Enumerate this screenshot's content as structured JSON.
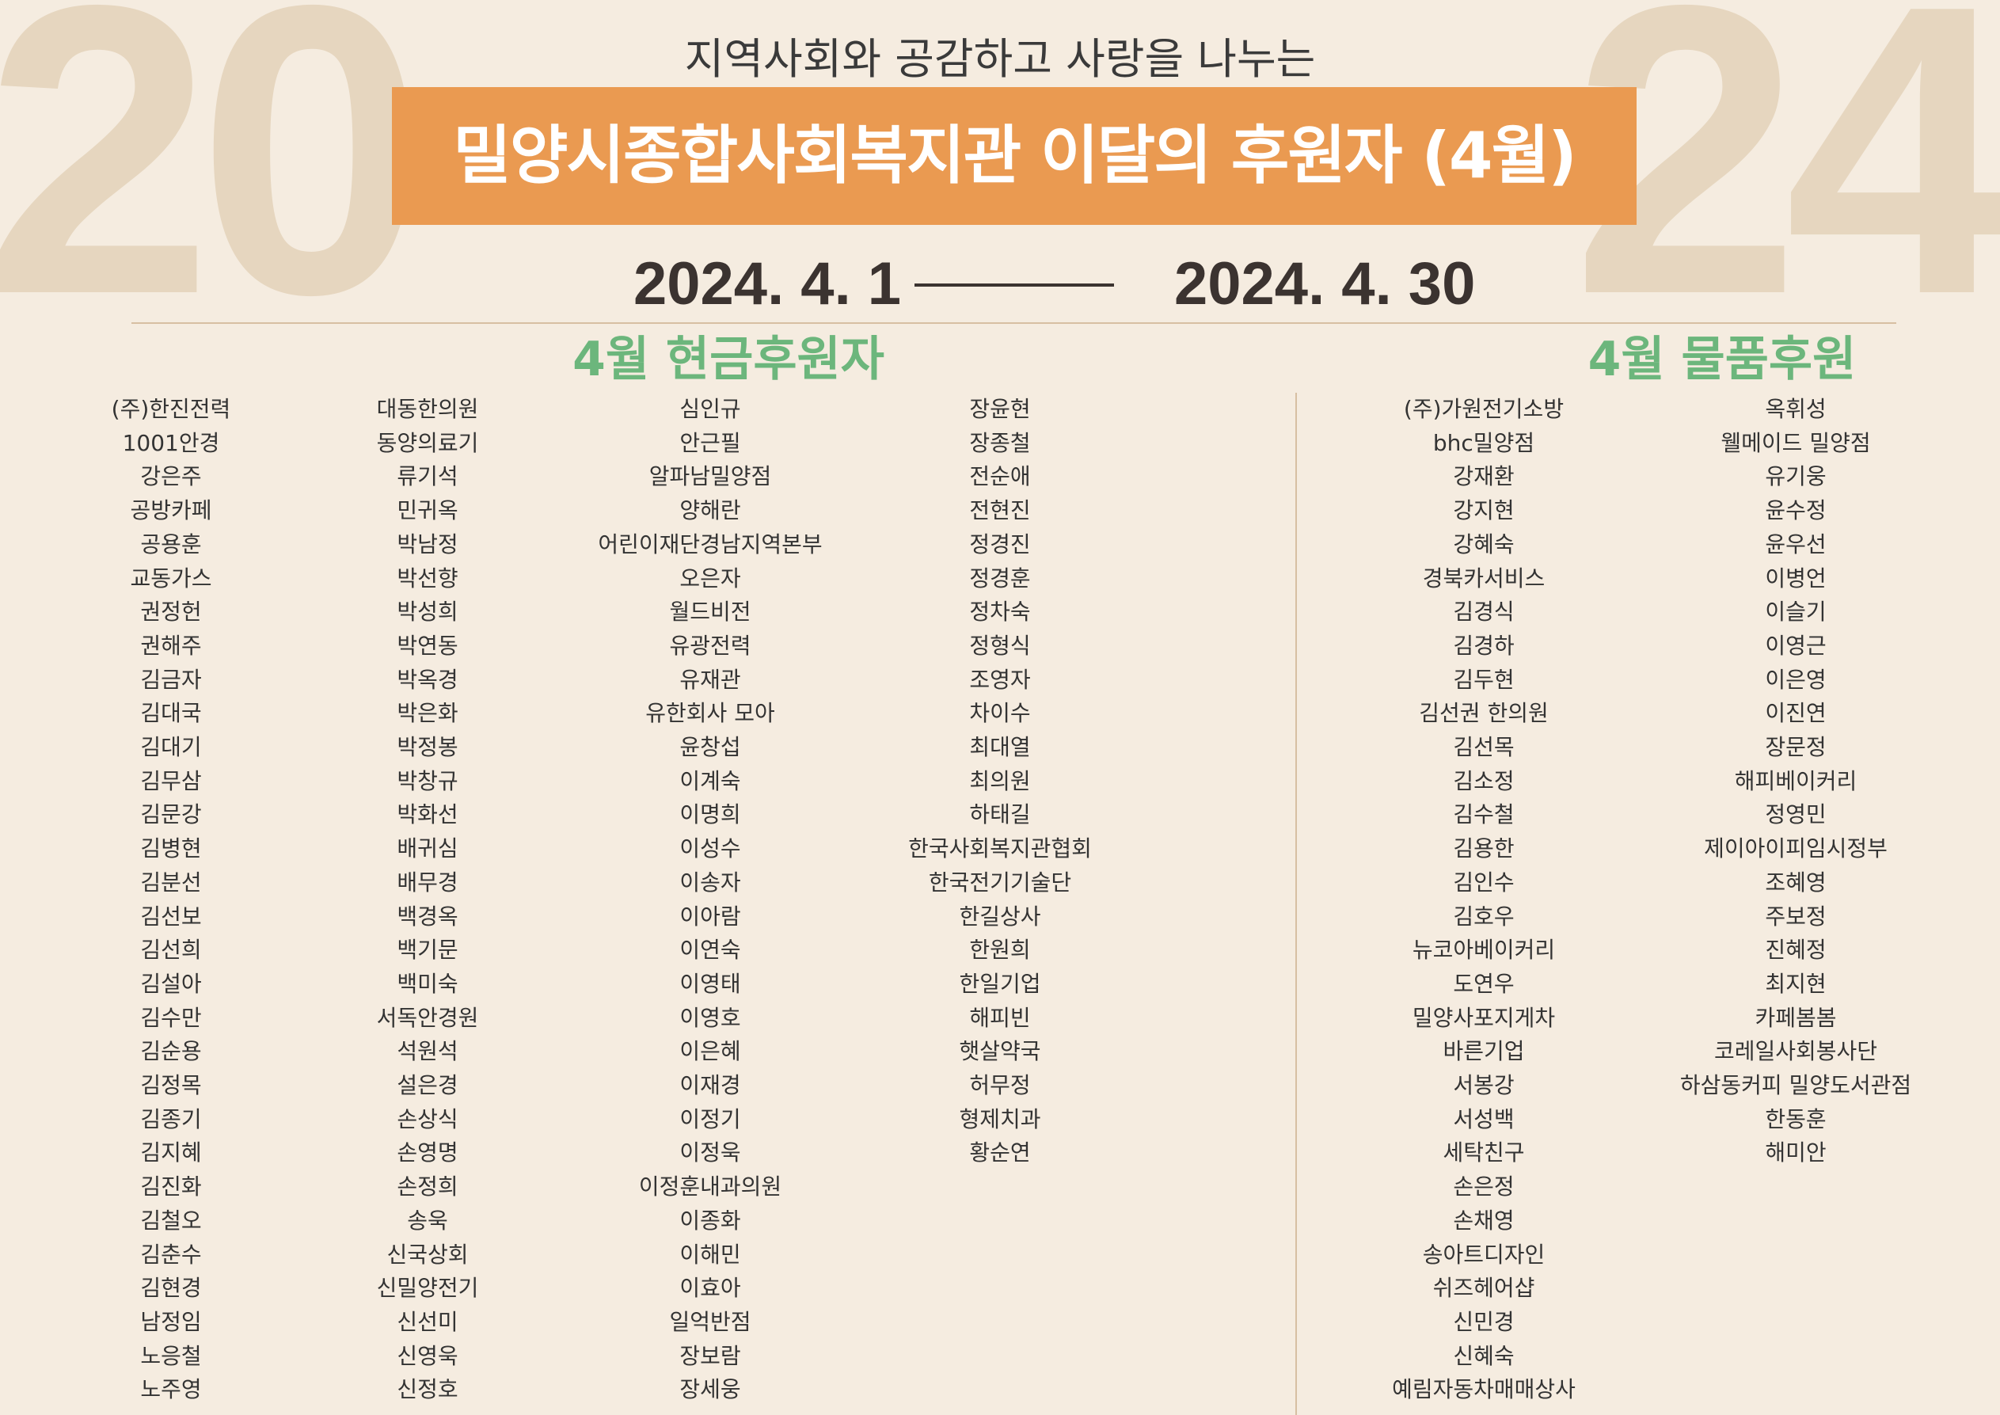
{
  "background": {
    "left": "20",
    "right": "24"
  },
  "header": {
    "subtitle": "지역사회와 공감하고 사랑을 나누는",
    "title": "밀양시종합사회복지관 이달의 후원자 (4월)"
  },
  "period": {
    "start": "2024. 4. 1",
    "end": "2024. 4. 30"
  },
  "cash": {
    "heading": "4월 현금후원자",
    "columns": [
      [
        "(주)한진전력",
        "1001안경",
        "강은주",
        "공방카페",
        "공용훈",
        "교동가스",
        "권정헌",
        "권해주",
        "김금자",
        "김대국",
        "김대기",
        "김무삼",
        "김문강",
        "김병현",
        "김분선",
        "김선보",
        "김선희",
        "김설아",
        "김수만",
        "김순용",
        "김정목",
        "김종기",
        "김지혜",
        "김진화",
        "김철오",
        "김춘수",
        "김현경",
        "남정임",
        "노응철",
        "노주영"
      ],
      [
        "대동한의원",
        "동양의료기",
        "류기석",
        "민귀옥",
        "박남정",
        "박선향",
        "박성희",
        "박연동",
        "박옥경",
        "박은화",
        "박정봉",
        "박창규",
        "박화선",
        "배귀심",
        "배무경",
        "백경옥",
        "백기문",
        "백미숙",
        "서독안경원",
        "석원석",
        "설은경",
        "손상식",
        "손영명",
        "손정희",
        "송욱",
        "신국상회",
        "신밀양전기",
        "신선미",
        "신영욱",
        "신정호"
      ],
      [
        "심인규",
        "안근필",
        "알파남밀양점",
        "양해란",
        "어린이재단경남지역본부",
        "오은자",
        "월드비전",
        "유광전력",
        "유재관",
        "유한회사 모아",
        "윤창섭",
        "이계숙",
        "이명희",
        "이성수",
        "이송자",
        "이아람",
        "이연숙",
        "이영태",
        "이영호",
        "이은혜",
        "이재경",
        "이정기",
        "이정욱",
        "이정훈내과의원",
        "이종화",
        "이해민",
        "이효아",
        "일억반점",
        "장보람",
        "장세웅"
      ],
      [
        "장윤현",
        "장종철",
        "전순애",
        "전현진",
        "정경진",
        "정경훈",
        "정차숙",
        "정형식",
        "조영자",
        "차이수",
        "최대열",
        "최의원",
        "하태길",
        "한국사회복지관협회",
        "한국전기기술단",
        "한길상사",
        "한원희",
        "한일기업",
        "해피빈",
        "햇살약국",
        "허무정",
        "형제치과",
        "황순연"
      ]
    ]
  },
  "goods": {
    "heading": "4월 물품후원",
    "columns": [
      [
        "(주)가원전기소방",
        "bhc밀양점",
        "강재환",
        "강지현",
        "강혜숙",
        "경북카서비스",
        "김경식",
        "김경하",
        "김두현",
        "김선권 한의원",
        "김선목",
        "김소정",
        "김수철",
        "김용한",
        "김인수",
        "김호우",
        "뉴코아베이커리",
        "도연우",
        "밀양사포지게차",
        "바른기업",
        "서봉강",
        "서성백",
        "세탁친구",
        "손은정",
        "손채영",
        "송아트디자인",
        "쉬즈헤어샵",
        "신민경",
        "신혜숙",
        "예림자동차매매상사"
      ],
      [
        "옥휘성",
        "웰메이드 밀양점",
        "유기웅",
        "윤수정",
        "윤우선",
        "이병언",
        "이슬기",
        "이영근",
        "이은영",
        "이진연",
        "장문정",
        "해피베이커리",
        "정영민",
        "제이아이피임시정부",
        "조혜영",
        "주보정",
        "진혜정",
        "최지현",
        "카페봄봄",
        "코레일사회봉사단",
        "하삼동커피 밀양도서관점",
        "한동훈",
        "해미안"
      ]
    ]
  }
}
